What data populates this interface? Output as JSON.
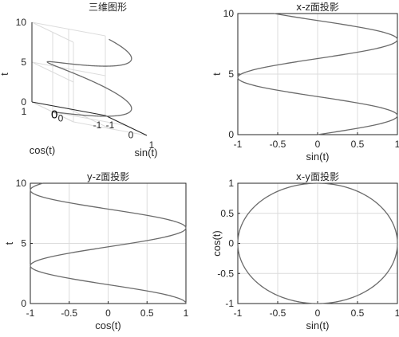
{
  "chart_data": [
    {
      "id": "helix3d",
      "type": "line3d",
      "title": "三维图形",
      "xlabel": "sin(t)",
      "ylabel": "cos(t)",
      "zlabel": "t",
      "xlim": [
        -1,
        1
      ],
      "ylim": [
        -1,
        1
      ],
      "zlim": [
        0,
        10
      ],
      "x_ticks": [
        "-1",
        "0",
        "1"
      ],
      "y_ticks": [
        "-1",
        "0",
        "1"
      ],
      "z_ticks": [
        "0",
        "5",
        "10"
      ],
      "annotation": "0",
      "grid": true,
      "series": [
        {
          "x": "sin(t)",
          "y": "cos(t)",
          "z": "t",
          "t_range": [
            0,
            10
          ]
        }
      ]
    },
    {
      "id": "xz",
      "type": "line",
      "title": "x-z面投影",
      "xlabel": "sin(t)",
      "ylabel": "t",
      "xlim": [
        -1,
        1
      ],
      "ylim": [
        0,
        10
      ],
      "x_ticks": [
        "-1",
        "-0.5",
        "0",
        "0.5",
        "1"
      ],
      "y_ticks": [
        "0",
        "5",
        "10"
      ],
      "grid": true,
      "series": [
        {
          "x": "sin(t)",
          "y": "t",
          "t_range": [
            0,
            10
          ]
        }
      ]
    },
    {
      "id": "yz",
      "type": "line",
      "title": "y-z面投影",
      "xlabel": "cos(t)",
      "ylabel": "t",
      "xlim": [
        -1,
        1
      ],
      "ylim": [
        0,
        10
      ],
      "x_ticks": [
        "-1",
        "-0.5",
        "0",
        "0.5",
        "1"
      ],
      "y_ticks": [
        "0",
        "5",
        "10"
      ],
      "grid": true,
      "series": [
        {
          "x": "cos(t)",
          "y": "t",
          "t_range": [
            0,
            10
          ]
        }
      ]
    },
    {
      "id": "xy",
      "type": "line",
      "title": "x-y面投影",
      "xlabel": "sin(t)",
      "ylabel": "cos(t)",
      "xlim": [
        -1,
        1
      ],
      "ylim": [
        -1,
        1
      ],
      "x_ticks": [
        "-1",
        "-0.5",
        "0",
        "0.5",
        "1"
      ],
      "y_ticks": [
        "-1",
        "-0.5",
        "0",
        "0.5",
        "1"
      ],
      "grid": true,
      "series": [
        {
          "x": "sin(t)",
          "y": "cos(t)",
          "t_range": [
            0,
            10
          ]
        }
      ]
    }
  ]
}
